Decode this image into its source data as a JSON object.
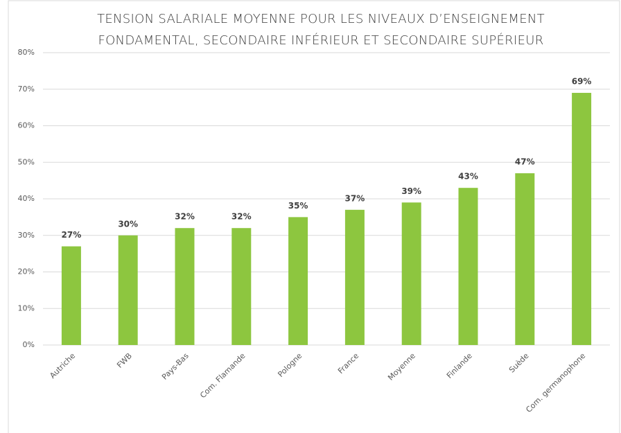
{
  "chart_data": {
    "type": "bar",
    "title": [
      "TENSION SALARIALE MOYENNE POUR LES NIVEAUX D’ENSEIGNEMENT",
      "FONDAMENTAL, SECONDAIRE INFÉRIEUR ET SECONDAIRE SUPÉRIEUR"
    ],
    "categories": [
      "Autriche",
      "FWB",
      "Pays-Bas",
      "Com. Flamande",
      "Pologne",
      "France",
      "Moyenne",
      "Finlande",
      "Suède",
      "Com. germanophone"
    ],
    "values": [
      27,
      30,
      32,
      32,
      35,
      37,
      39,
      43,
      47,
      69
    ],
    "value_labels": [
      "27%",
      "30%",
      "32%",
      "32%",
      "35%",
      "37%",
      "39%",
      "43%",
      "47%",
      "69%"
    ],
    "color": "#8dc63f",
    "ylim": [
      0,
      80
    ],
    "yticks": [
      {
        "value": 0,
        "label": "0%"
      },
      {
        "value": 10,
        "label": "10%"
      },
      {
        "value": 20,
        "label": "20%"
      },
      {
        "value": 30,
        "label": "30%"
      },
      {
        "value": 40,
        "label": "40%"
      },
      {
        "value": 50,
        "label": "50%"
      },
      {
        "value": 60,
        "label": "60%"
      },
      {
        "value": 70,
        "label": "70%"
      },
      {
        "value": 80,
        "label": "80%"
      }
    ],
    "grid": true
  }
}
